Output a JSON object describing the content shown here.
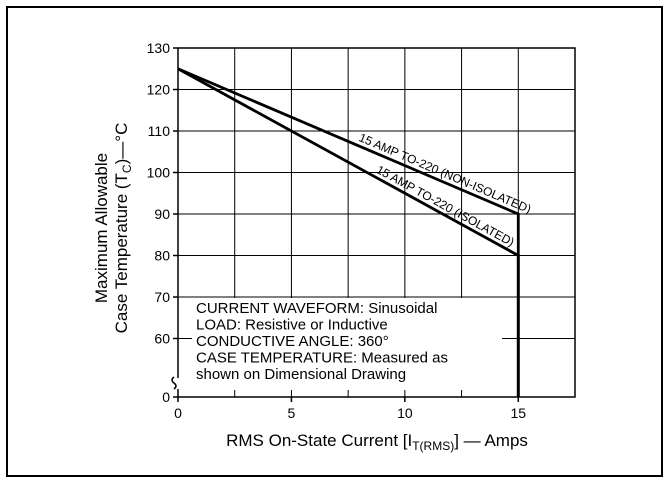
{
  "chart_data": {
    "type": "line",
    "xlabel": {
      "main": "RMS On-State Current [I",
      "sub": "T(RMS)",
      "tail": "] — Amps"
    },
    "ylabel": {
      "line1": "Maximum Allowable",
      "line2_main": "Case Temperature (T",
      "line2_sub": "C",
      "line2_tail": ")—°C"
    },
    "xlim": [
      0,
      17.5
    ],
    "ylim": [
      50,
      130
    ],
    "y_axis_break": true,
    "x_ticks": [
      0,
      5,
      10,
      15
    ],
    "y_ticks": [
      0,
      60,
      70,
      80,
      90,
      100,
      110,
      120,
      130
    ],
    "grid": true,
    "series": [
      {
        "name": "15 AMP TO-220 (NON-ISOLATED)",
        "points": [
          [
            0,
            125
          ],
          [
            15,
            90
          ]
        ],
        "drop_to_axis": true
      },
      {
        "name": "15 AMP TO-220 (ISOLATED)",
        "points": [
          [
            0,
            125
          ],
          [
            15,
            80
          ]
        ],
        "drop_to_axis": true
      }
    ],
    "notes": [
      "CURRENT WAVEFORM: Sinusoidal",
      "LOAD: Resistive or Inductive",
      "CONDUCTIVE ANGLE: 360°",
      "CASE TEMPERATURE: Measured as",
      "shown on Dimensional Drawing"
    ]
  }
}
